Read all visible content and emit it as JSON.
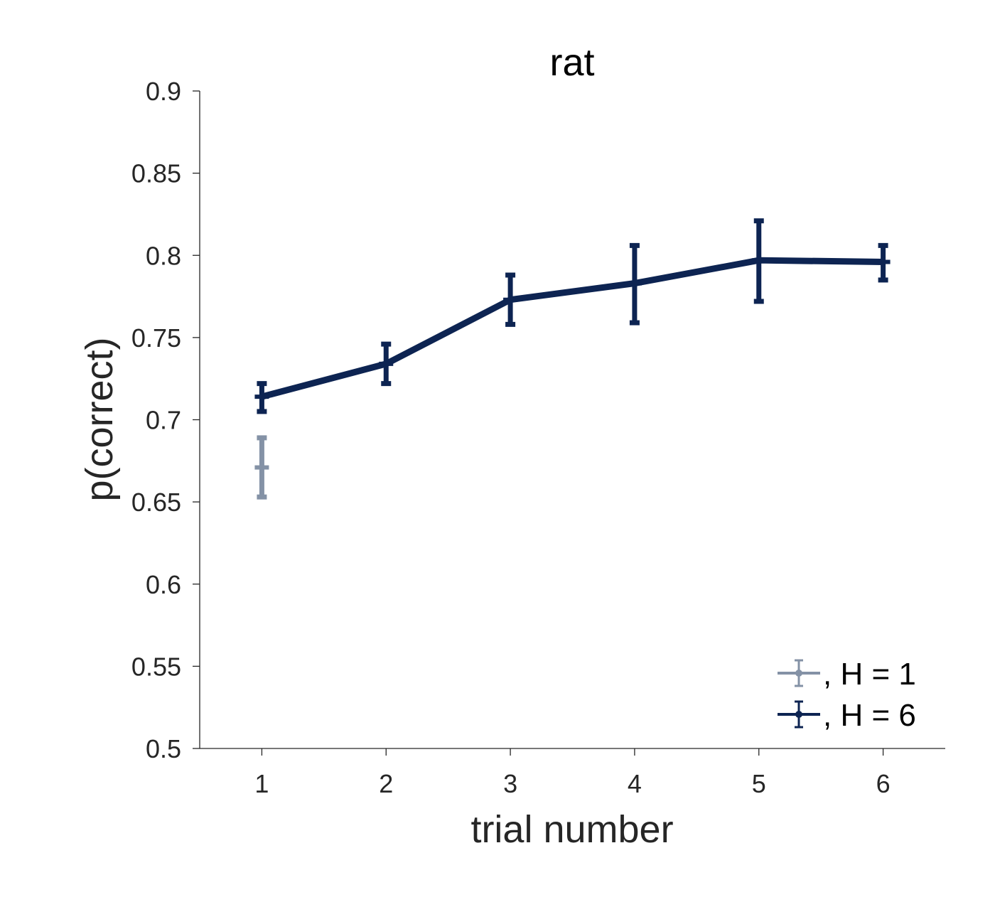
{
  "chart_data": {
    "type": "line",
    "title": "rat",
    "xlabel": "trial number",
    "ylabel": "p(correct)",
    "xlim": [
      0.5,
      6.5
    ],
    "ylim": [
      0.5,
      0.9
    ],
    "xticks": [
      1,
      2,
      3,
      4,
      5,
      6
    ],
    "xtick_labels": [
      "1",
      "2",
      "3",
      "4",
      "5",
      "6"
    ],
    "yticks": [
      0.5,
      0.55,
      0.6,
      0.65,
      0.7,
      0.75,
      0.8,
      0.85,
      0.9
    ],
    "ytick_labels": [
      "0.5",
      "0.55",
      "0.6",
      "0.65",
      "0.7",
      "0.75",
      "0.8",
      "0.85",
      "0.9"
    ],
    "grid": false,
    "legend_position": "bottom-right",
    "series": [
      {
        "name": ", H = 1",
        "color": "#8492a6",
        "x": [
          1
        ],
        "y": [
          0.671
        ],
        "err_low": [
          0.653
        ],
        "err_high": [
          0.689
        ]
      },
      {
        "name": ", H = 6",
        "color": "#0d2452",
        "x": [
          1,
          2,
          3,
          4,
          5,
          6
        ],
        "y": [
          0.714,
          0.734,
          0.773,
          0.783,
          0.797,
          0.796
        ],
        "err_low": [
          0.705,
          0.722,
          0.758,
          0.759,
          0.772,
          0.785
        ],
        "err_high": [
          0.722,
          0.746,
          0.788,
          0.806,
          0.821,
          0.806
        ]
      }
    ]
  }
}
